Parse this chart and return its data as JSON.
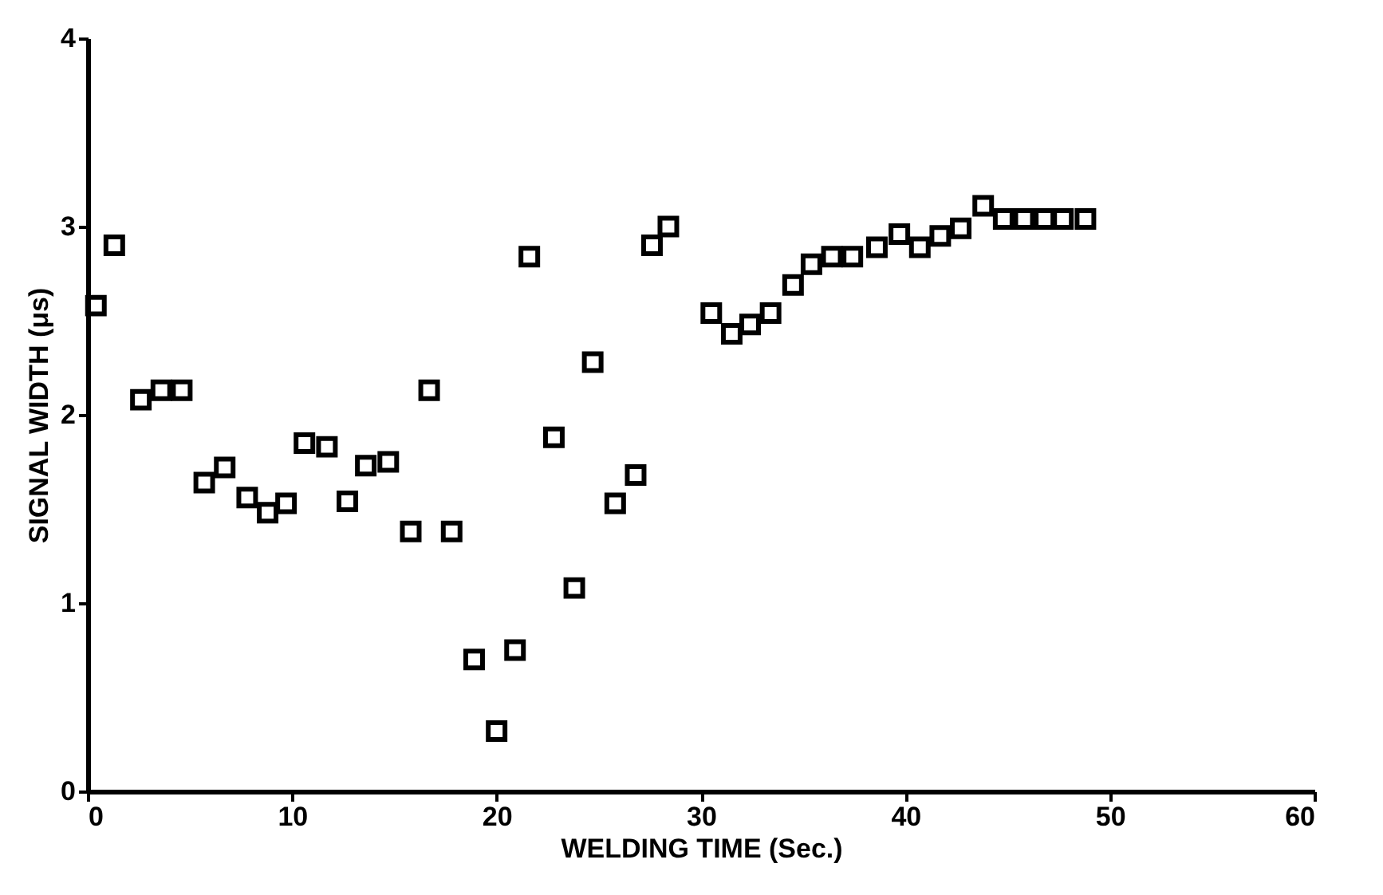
{
  "chart_data": {
    "type": "scatter",
    "xlabel": "WELDING TIME (Sec.)",
    "ylabel": "SIGNAL WIDTH (μs)",
    "xlim": [
      0,
      60
    ],
    "xticks": [
      0,
      10,
      20,
      30,
      40,
      50,
      60
    ],
    "ylim": [
      0,
      4
    ],
    "yticks": [
      0,
      1,
      2,
      3,
      4
    ],
    "grid": false,
    "marker": "square",
    "series": [
      {
        "color": "#000000",
        "x": [
          0.4,
          1.3,
          2.6,
          3.6,
          4.6,
          5.7,
          6.7,
          7.8,
          8.8,
          9.7,
          10.6,
          11.7,
          12.7,
          13.6,
          14.7,
          15.8,
          16.7,
          17.8,
          18.9,
          20.0,
          20.9,
          21.6,
          22.8,
          23.8,
          24.7,
          25.8,
          26.8,
          27.6,
          28.4,
          30.5,
          31.5,
          32.4,
          33.4,
          34.5,
          35.4,
          36.4,
          37.4,
          38.6,
          39.7,
          40.7,
          41.7,
          42.7,
          43.8,
          44.8,
          45.8,
          46.8,
          47.7,
          48.8
        ],
        "values": [
          2.58,
          2.9,
          2.08,
          2.13,
          2.13,
          1.64,
          1.72,
          1.56,
          1.48,
          1.53,
          1.85,
          1.83,
          1.54,
          1.73,
          1.75,
          1.38,
          2.13,
          1.38,
          0.7,
          0.32,
          0.75,
          2.84,
          1.88,
          1.08,
          2.28,
          1.53,
          1.68,
          2.9,
          3.0,
          2.54,
          2.43,
          2.48,
          2.54,
          2.69,
          2.8,
          2.84,
          2.84,
          2.89,
          2.96,
          2.89,
          2.95,
          2.99,
          3.11,
          3.04,
          3.04,
          3.04,
          3.04,
          3.04
        ]
      }
    ]
  }
}
